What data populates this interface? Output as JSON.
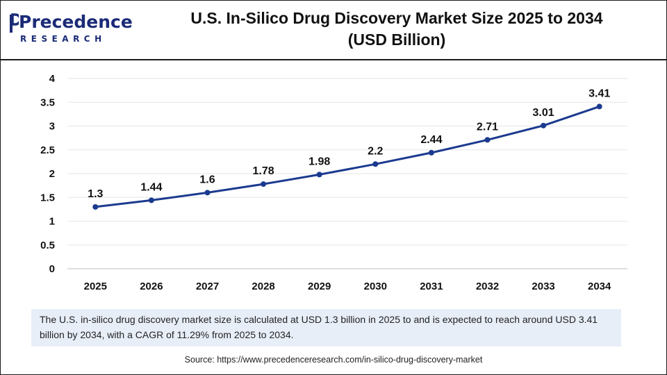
{
  "header": {
    "logo_word": "Precedence",
    "logo_sub": "RESEARCH",
    "title_line1": "U.S. In-Silico Drug Discovery Market Size 2025 to 2034",
    "title_line2": "(USD Billion)"
  },
  "colors": {
    "line": "#1b3a8f",
    "brand": "#1b2b78",
    "note_bg": "#e8eef8"
  },
  "chart_data": {
    "type": "line",
    "title": "U.S. In-Silico Drug Discovery Market Size 2025 to 2034 (USD Billion)",
    "categories": [
      "2025",
      "2026",
      "2027",
      "2028",
      "2029",
      "2030",
      "2031",
      "2032",
      "2033",
      "2034"
    ],
    "values": [
      1.3,
      1.44,
      1.6,
      1.78,
      1.98,
      2.2,
      2.44,
      2.71,
      3.01,
      3.41
    ],
    "value_labels": [
      "1.3",
      "1.44",
      "1.6",
      "1.78",
      "1.98",
      "2.2",
      "2.44",
      "2.71",
      "3.01",
      "3.41"
    ],
    "ylim": [
      0,
      4
    ],
    "yticks": [
      "0",
      "0.5",
      "1",
      "1.5",
      "2",
      "2.5",
      "3",
      "3.5",
      "4"
    ],
    "ytick_values": [
      0,
      0.5,
      1,
      1.5,
      2,
      2.5,
      3,
      3.5,
      4
    ],
    "grid": true,
    "legend": "none",
    "xlabel": "",
    "ylabel": ""
  },
  "note": {
    "text": "The U.S. in-silico drug discovery market size is calculated at USD 1.3 billion in 2025 to and is expected to reach around USD 3.41 billion by 2034, with a CAGR of 11.29% from 2025 to 2034."
  },
  "source": {
    "text": "Source: https://www.precedenceresearch.com/in-silico-drug-discovery-market"
  }
}
